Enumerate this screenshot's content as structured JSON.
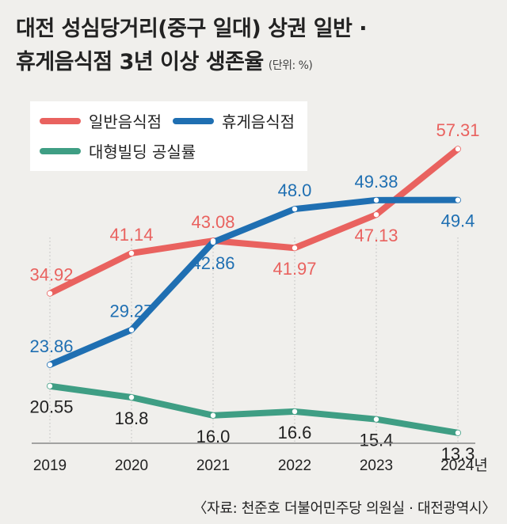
{
  "title": {
    "line1": "대전 성심당거리(중구 일대) 상권 일반 ·",
    "line2": "휴게음식점 3년 이상 생존율",
    "unit": "(단위: %)"
  },
  "source": "〈자료: 천준호 더불어민주당 의원실 · 대전광역시〉",
  "colors": {
    "general_restaurant": "#e9625f",
    "rest_restaurant": "#1f6fb2",
    "vacancy": "#3f9e84",
    "background": "#f0efec"
  },
  "chart_data": {
    "type": "line",
    "x": [
      "2019",
      "2020",
      "2021",
      "2022",
      "2023",
      "2024년"
    ],
    "series": [
      {
        "name": "일반음식점",
        "values": [
          34.92,
          41.14,
          43.08,
          41.97,
          47.13,
          57.31
        ],
        "labels": [
          "34.92",
          "41.14",
          "43.08",
          "41.97",
          "47.13",
          "57.31"
        ],
        "label_pos": [
          "above",
          "above",
          "above",
          "below",
          "below",
          "above"
        ]
      },
      {
        "name": "휴게음식점",
        "values": [
          23.86,
          29.27,
          42.86,
          48.0,
          49.38,
          49.4
        ],
        "labels": [
          "23.86",
          "29.27",
          "42.86",
          "48.0",
          "49.38",
          "49.4"
        ],
        "label_pos": [
          "above",
          "above",
          "below",
          "above",
          "above",
          "below"
        ]
      },
      {
        "name": "대형빌딩 공실률",
        "values": [
          20.55,
          18.8,
          16.0,
          16.6,
          15.4,
          13.3
        ],
        "labels": [
          "20.55",
          "18.8",
          "16.0",
          "16.6",
          "15.4",
          "13.3"
        ],
        "label_pos": [
          "below",
          "below",
          "below",
          "below",
          "below",
          "below"
        ]
      }
    ],
    "ylim": [
      8,
      62
    ],
    "grid": "vertical-dotted",
    "legend": "top-left"
  }
}
